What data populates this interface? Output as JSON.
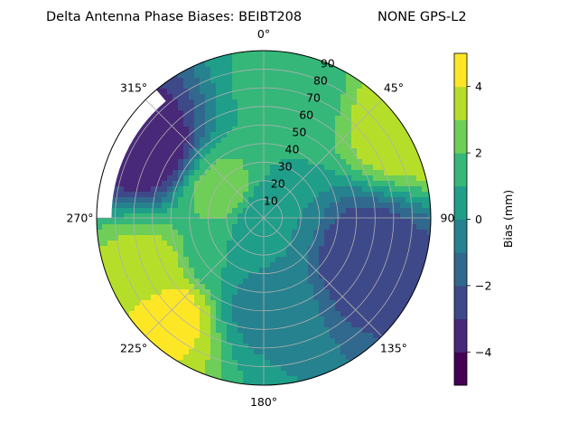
{
  "chart_data": {
    "type": "polar-contour",
    "title": "Delta Antenna Phase Biases: BEIBT208",
    "subtitle": "NONE GPS-L2",
    "theta_tick_labels": [
      "0°",
      "45°",
      "90",
      "135°",
      "180°",
      "225°",
      "270°",
      "315°"
    ],
    "theta_tick_values_deg": [
      0,
      45,
      90,
      135,
      180,
      225,
      270,
      315
    ],
    "theta_direction": "clockwise",
    "theta_zero": "top",
    "r_tick_values": [
      10,
      20,
      30,
      40,
      50,
      60,
      70,
      80,
      90
    ],
    "r_tick_labels": [
      "10",
      "20",
      "30",
      "40",
      "50",
      "60",
      "70",
      "80",
      "90"
    ],
    "r_range": [
      0,
      90
    ],
    "grid": true,
    "colorbar": {
      "label": "Bias (mm)",
      "range": [
        -5,
        5
      ],
      "levels": [
        -5,
        -4,
        -3,
        -2,
        -1,
        0,
        1,
        2,
        3,
        4,
        5
      ],
      "tick_values": [
        -4,
        -2,
        0,
        2,
        4
      ],
      "tick_labels": [
        "−4",
        "−2",
        "0",
        "2",
        "4"
      ],
      "colors": [
        "#440154",
        "#482878",
        "#3e4989",
        "#31688e",
        "#26828e",
        "#1f9e89",
        "#35b779",
        "#6ece58",
        "#b5de2b",
        "#fde725"
      ],
      "colormap": "viridis",
      "placement": "right"
    },
    "field_features": [
      {
        "theta_deg": 0,
        "r": 0,
        "value": 0
      },
      {
        "theta_deg": 300,
        "r": 25,
        "value": 2.5
      },
      {
        "theta_deg": 225,
        "r": 72,
        "value": 4.5
      },
      {
        "theta_deg": 245,
        "r": 68,
        "value": 3.5
      },
      {
        "theta_deg": 112,
        "r": 58,
        "value": -3
      },
      {
        "theta_deg": 300,
        "r": 72,
        "value": -4
      },
      {
        "theta_deg": 180,
        "r": 45,
        "value": -0.5
      },
      {
        "theta_deg": 230,
        "r": 30,
        "value": 1
      },
      {
        "theta_deg": 15,
        "r": 70,
        "value": 1.5
      },
      {
        "theta_deg": 55,
        "r": 90,
        "value": 4
      }
    ],
    "no_data_region": {
      "theta_deg_range": [
        270,
        320
      ],
      "r_range": [
        82,
        90
      ]
    }
  }
}
